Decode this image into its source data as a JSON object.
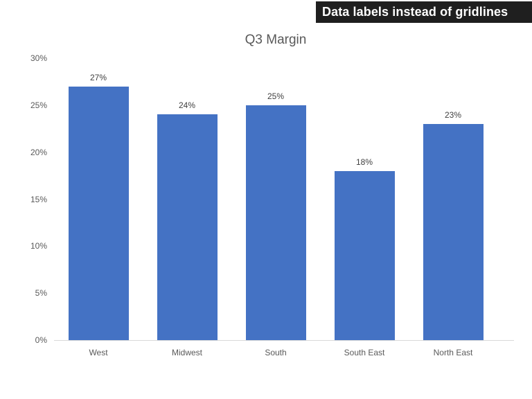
{
  "banner": {
    "label": "Data labels instead of gridlines",
    "bg_color": "#1f1f1f",
    "text_color": "#ffffff"
  },
  "chart_data": {
    "type": "bar",
    "title": "Q3 Margin",
    "categories": [
      "West",
      "Midwest",
      "South",
      "South East",
      "North East"
    ],
    "values": [
      27,
      24,
      25,
      18,
      23
    ],
    "data_labels": [
      "27%",
      "24%",
      "25%",
      "18%",
      "23%"
    ],
    "xlabel": "",
    "ylabel": "",
    "ylim": [
      0,
      30
    ],
    "yticks": [
      0,
      5,
      10,
      15,
      20,
      25,
      30
    ],
    "ytick_labels": [
      "0%",
      "5%",
      "10%",
      "15%",
      "20%",
      "25%",
      "30%"
    ],
    "gridlines": false,
    "legend": "none",
    "bar_color": "#4472c4",
    "axis_line_color": "#d9d9d9",
    "tick_label_color": "#595959",
    "category_label_color": "#595959",
    "data_label_color": "#404040",
    "title_color": "#595959"
  }
}
